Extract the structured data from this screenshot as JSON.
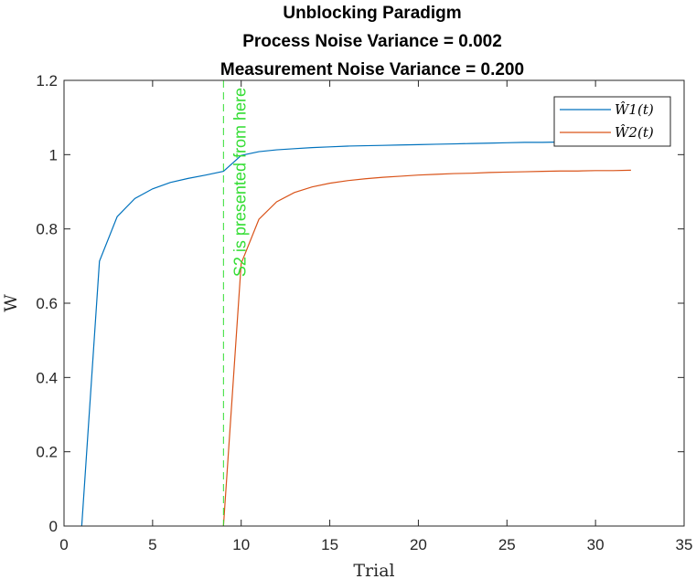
{
  "chart_data": {
    "type": "line",
    "title": [
      "Unblocking Paradigm",
      "Process Noise Variance = 0.002",
      "Measurement Noise Variance = 0.200"
    ],
    "xlabel": "Trial",
    "ylabel": "W",
    "xlim": [
      0,
      35
    ],
    "ylim": [
      0,
      1.2
    ],
    "xticks": [
      0,
      5,
      10,
      15,
      20,
      25,
      30,
      35
    ],
    "yticks": [
      0,
      0.2,
      0.4,
      0.6,
      0.8,
      1,
      1.2
    ],
    "xtick_labels": [
      "0",
      "5",
      "10",
      "15",
      "20",
      "25",
      "30",
      "35"
    ],
    "ytick_labels": [
      "0",
      "0.2",
      "0.4",
      "0.6",
      "0.8",
      "1",
      "1.2"
    ],
    "grid": false,
    "legend_position": "top-right",
    "series": [
      {
        "name": "Ŵ1(t)",
        "color": "#0072BD",
        "x": [
          1,
          2,
          3,
          4,
          5,
          6,
          7,
          8,
          9,
          10,
          11,
          12,
          13,
          14,
          15,
          16,
          17,
          18,
          19,
          20,
          21,
          22,
          23,
          24,
          25,
          26,
          27,
          28,
          29,
          30,
          31,
          32
        ],
        "y": [
          0,
          0.713,
          0.833,
          0.882,
          0.908,
          0.925,
          0.936,
          0.945,
          0.955,
          0.998,
          1.008,
          1.013,
          1.016,
          1.019,
          1.021,
          1.023,
          1.024,
          1.025,
          1.026,
          1.027,
          1.028,
          1.029,
          1.03,
          1.031,
          1.032,
          1.033,
          1.033,
          1.034,
          1.034,
          1.035,
          1.035,
          1.035
        ]
      },
      {
        "name": "Ŵ2(t)",
        "color": "#D95319",
        "x": [
          9,
          10,
          11,
          12,
          13,
          14,
          15,
          16,
          17,
          18,
          19,
          20,
          21,
          22,
          23,
          24,
          25,
          26,
          27,
          28,
          29,
          30,
          31,
          32
        ],
        "y": [
          0,
          0.707,
          0.826,
          0.873,
          0.898,
          0.913,
          0.923,
          0.93,
          0.935,
          0.939,
          0.942,
          0.945,
          0.947,
          0.949,
          0.95,
          0.952,
          0.953,
          0.954,
          0.955,
          0.956,
          0.956,
          0.957,
          0.957,
          0.958
        ]
      }
    ],
    "annotations": [
      {
        "type": "vline",
        "x": 9,
        "color": "#33DD33",
        "style": "dashed",
        "text": "S2 is presented from here"
      }
    ]
  }
}
